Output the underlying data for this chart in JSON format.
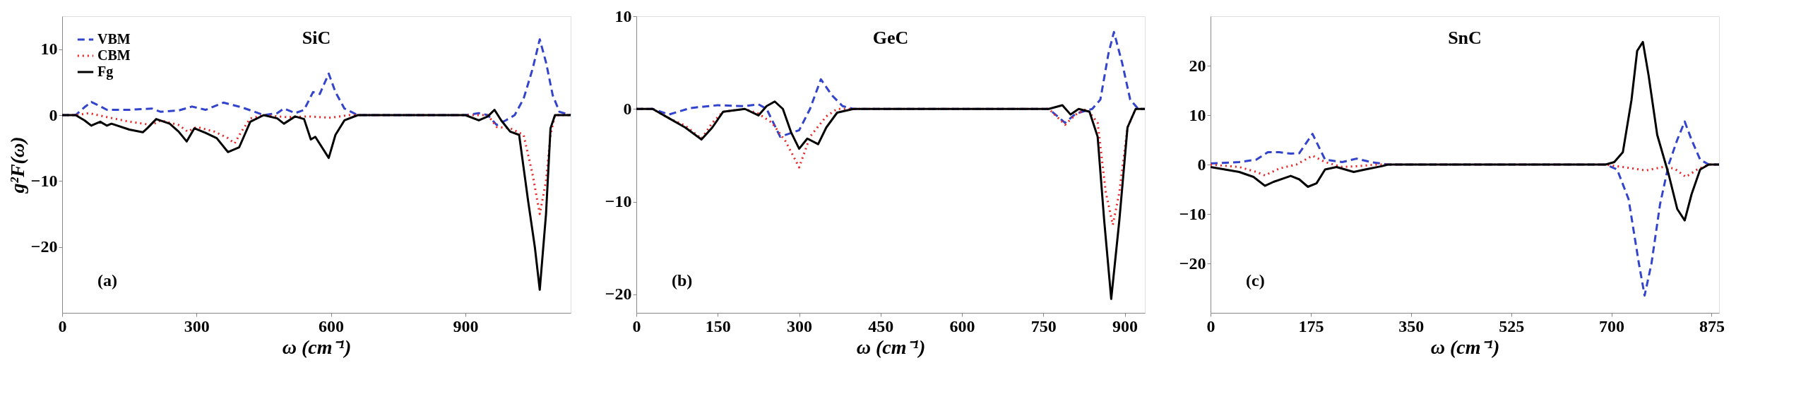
{
  "chart_data": [
    {
      "type": "line",
      "title": "SiC",
      "xlabel": "ω (cm⁻¹)",
      "ylabel": "g²F(ω)",
      "annotations": [
        "(a)"
      ],
      "xlim": [
        0,
        1135
      ],
      "ylim": [
        -30,
        15
      ],
      "xticks": [
        0,
        300,
        600,
        900
      ],
      "yticks": [
        -20,
        -10,
        0,
        10
      ],
      "grid": false,
      "legend": "top left",
      "series": [
        {
          "name": "VBM",
          "color": "#3344cc",
          "line_style": "dashed",
          "x": [
            0,
            30,
            50,
            65,
            80,
            100,
            150,
            200,
            220,
            260,
            290,
            320,
            360,
            400,
            430,
            450,
            480,
            495,
            520,
            540,
            560,
            575,
            595,
            610,
            630,
            660,
            900,
            930,
            950,
            970,
            990,
            1010,
            1030,
            1050,
            1066,
            1080,
            1095,
            1110,
            1135
          ],
          "values": [
            0,
            0,
            1.2,
            2,
            1.5,
            0.8,
            0.8,
            1.0,
            0.5,
            0.7,
            1.3,
            0.8,
            1.9,
            1.2,
            0.5,
            0,
            0.3,
            1.0,
            0.3,
            0.8,
            3.5,
            3.2,
            6.3,
            3.5,
            1.0,
            0,
            0,
            0.3,
            0,
            -1.5,
            -0.8,
            0,
            2.5,
            7,
            11.5,
            8,
            3,
            0.5,
            0
          ]
        },
        {
          "name": "CBM",
          "color": "#ee2222",
          "line_style": "dotted",
          "x": [
            0,
            30,
            60,
            100,
            150,
            200,
            220,
            260,
            280,
            300,
            340,
            370,
            385,
            400,
            420,
            450,
            500,
            550,
            600,
            640,
            660,
            900,
            950,
            970,
            1000,
            1030,
            1050,
            1066,
            1080,
            1090,
            1100,
            1135
          ],
          "values": [
            0,
            0,
            0.3,
            -0.3,
            -1,
            -1.5,
            -0.8,
            -1.5,
            -2.5,
            -1.8,
            -2.5,
            -3.5,
            -4.3,
            -2.5,
            -0.5,
            0,
            -0.3,
            -0.2,
            -0.4,
            0,
            0,
            0,
            0,
            -1.8,
            -2,
            -3,
            -9,
            -15,
            -10,
            -3,
            0,
            0
          ]
        },
        {
          "name": "Fg",
          "color": "#000000",
          "line_style": "solid",
          "x": [
            0,
            30,
            50,
            65,
            85,
            100,
            110,
            150,
            180,
            190,
            210,
            240,
            260,
            278,
            295,
            320,
            345,
            370,
            395,
            420,
            450,
            480,
            495,
            520,
            540,
            555,
            565,
            595,
            610,
            630,
            660,
            900,
            930,
            950,
            965,
            980,
            1000,
            1020,
            1040,
            1055,
            1066,
            1080,
            1090,
            1100,
            1135
          ],
          "values": [
            0,
            0,
            -0.8,
            -1.6,
            -1.0,
            -1.6,
            -1.3,
            -2.2,
            -2.6,
            -2.0,
            -0.6,
            -1.3,
            -2.5,
            -4.0,
            -2.0,
            -2.7,
            -3.5,
            -5.6,
            -4.9,
            -1.0,
            0,
            -0.5,
            -1.3,
            -0.2,
            -0.6,
            -3.7,
            -3.3,
            -6.5,
            -3.0,
            -0.8,
            0,
            0,
            -0.8,
            -0.2,
            0.8,
            -0.8,
            -2.5,
            -3.0,
            -13,
            -20,
            -26.5,
            -15,
            -2,
            0,
            0
          ]
        }
      ]
    },
    {
      "type": "line",
      "title": "GeC",
      "xlabel": "ω (cm⁻¹)",
      "annotations": [
        "(b)"
      ],
      "xlim": [
        0,
        937
      ],
      "ylim": [
        -22,
        10
      ],
      "xticks": [
        0,
        150,
        300,
        450,
        600,
        750,
        900
      ],
      "yticks": [
        -20,
        -10,
        0,
        10
      ],
      "grid": false,
      "legend": "top left",
      "series": [
        {
          "name": "VBM",
          "color": "#3344cc",
          "line_style": "dashed",
          "x": [
            0,
            30,
            60,
            100,
            150,
            200,
            225,
            240,
            265,
            300,
            320,
            340,
            360,
            380,
            400,
            760,
            790,
            810,
            840,
            855,
            870,
            880,
            895,
            910,
            925,
            937
          ],
          "values": [
            0,
            0,
            -0.6,
            0.1,
            0.4,
            0.3,
            0.5,
            0,
            -3,
            -2.3,
            0,
            3.2,
            1.5,
            0.3,
            0,
            0,
            -1.5,
            -0.5,
            0,
            1,
            6,
            8.3,
            5,
            1,
            0,
            0
          ]
        },
        {
          "name": "CBM",
          "color": "#ee2222",
          "line_style": "dotted",
          "x": [
            0,
            30,
            60,
            90,
            120,
            140,
            160,
            200,
            225,
            250,
            275,
            300,
            320,
            350,
            370,
            400,
            760,
            790,
            810,
            830,
            850,
            865,
            878,
            890,
            905,
            920,
            937
          ],
          "values": [
            0,
            0,
            -1.0,
            -1.8,
            -3.2,
            -1.5,
            -0.3,
            0,
            -0.5,
            -1.5,
            -3.5,
            -6.3,
            -3,
            -0.8,
            0,
            0,
            0,
            -1.7,
            -0.6,
            0,
            -1.5,
            -9,
            -12.5,
            -9,
            -2,
            0,
            0
          ]
        },
        {
          "name": "Fg",
          "color": "#000000",
          "line_style": "solid",
          "x": [
            0,
            30,
            60,
            90,
            120,
            140,
            160,
            200,
            225,
            240,
            255,
            270,
            285,
            300,
            315,
            335,
            350,
            370,
            400,
            760,
            785,
            800,
            815,
            835,
            850,
            862,
            875,
            890,
            905,
            920,
            937
          ],
          "values": [
            0,
            0,
            -1.0,
            -2,
            -3.3,
            -2,
            -0.3,
            0,
            -0.7,
            0.3,
            0.8,
            0,
            -2.5,
            -4.3,
            -3.2,
            -3.8,
            -2,
            -0.4,
            0,
            0,
            0.4,
            -0.6,
            0,
            -0.3,
            -3,
            -12,
            -20.5,
            -12,
            -2,
            0,
            0
          ]
        }
      ]
    },
    {
      "type": "line",
      "title": "SnC",
      "xlabel": "ω (cm⁻¹)",
      "annotations": [
        "(c)"
      ],
      "xlim": [
        0,
        888
      ],
      "ylim": [
        -30,
        30
      ],
      "xticks": [
        0,
        175,
        350,
        525,
        700,
        875
      ],
      "yticks": [
        -20,
        -10,
        0,
        10,
        20
      ],
      "grid": false,
      "legend": "top left",
      "series": [
        {
          "name": "VBM",
          "color": "#3344cc",
          "line_style": "dashed",
          "x": [
            0,
            50,
            80,
            100,
            120,
            140,
            155,
            178,
            200,
            230,
            255,
            280,
            310,
            690,
            710,
            730,
            748,
            758,
            770,
            785,
            800,
            815,
            828,
            840,
            855,
            870,
            888
          ],
          "values": [
            0.2,
            0.5,
            1.0,
            2.5,
            2.5,
            2.2,
            2.3,
            6.2,
            1.0,
            0.5,
            1.2,
            0.5,
            0,
            0,
            -1,
            -7,
            -20,
            -26.5,
            -20,
            -8,
            0,
            5,
            8.7,
            5,
            1,
            0,
            0
          ]
        },
        {
          "name": "CBM",
          "color": "#ee2222",
          "line_style": "dotted",
          "x": [
            0,
            50,
            80,
            95,
            120,
            150,
            178,
            200,
            230,
            260,
            290,
            690,
            720,
            760,
            790,
            810,
            830,
            850,
            870,
            888
          ],
          "values": [
            0,
            -0.5,
            -1.5,
            -2.2,
            -0.8,
            0,
            1.8,
            0.5,
            -0.5,
            -0.3,
            0,
            0,
            -0.5,
            -1.2,
            -0.5,
            -0.8,
            -2.5,
            -1,
            0,
            0
          ]
        },
        {
          "name": "Fg",
          "color": "#000000",
          "line_style": "solid",
          "x": [
            0,
            50,
            75,
            95,
            110,
            140,
            155,
            170,
            185,
            200,
            220,
            250,
            270,
            300,
            310,
            690,
            705,
            720,
            735,
            745,
            755,
            765,
            780,
            800,
            815,
            828,
            840,
            855,
            870,
            888
          ],
          "values": [
            -0.5,
            -1.5,
            -2.5,
            -4.3,
            -3.5,
            -2.3,
            -3,
            -4.5,
            -3.8,
            -1.0,
            -0.5,
            -1.5,
            -1,
            -0.3,
            0,
            0,
            0.5,
            2.5,
            13,
            23,
            24.8,
            18,
            6,
            -2,
            -9,
            -11.3,
            -6,
            -1,
            0,
            0
          ]
        }
      ]
    }
  ]
}
